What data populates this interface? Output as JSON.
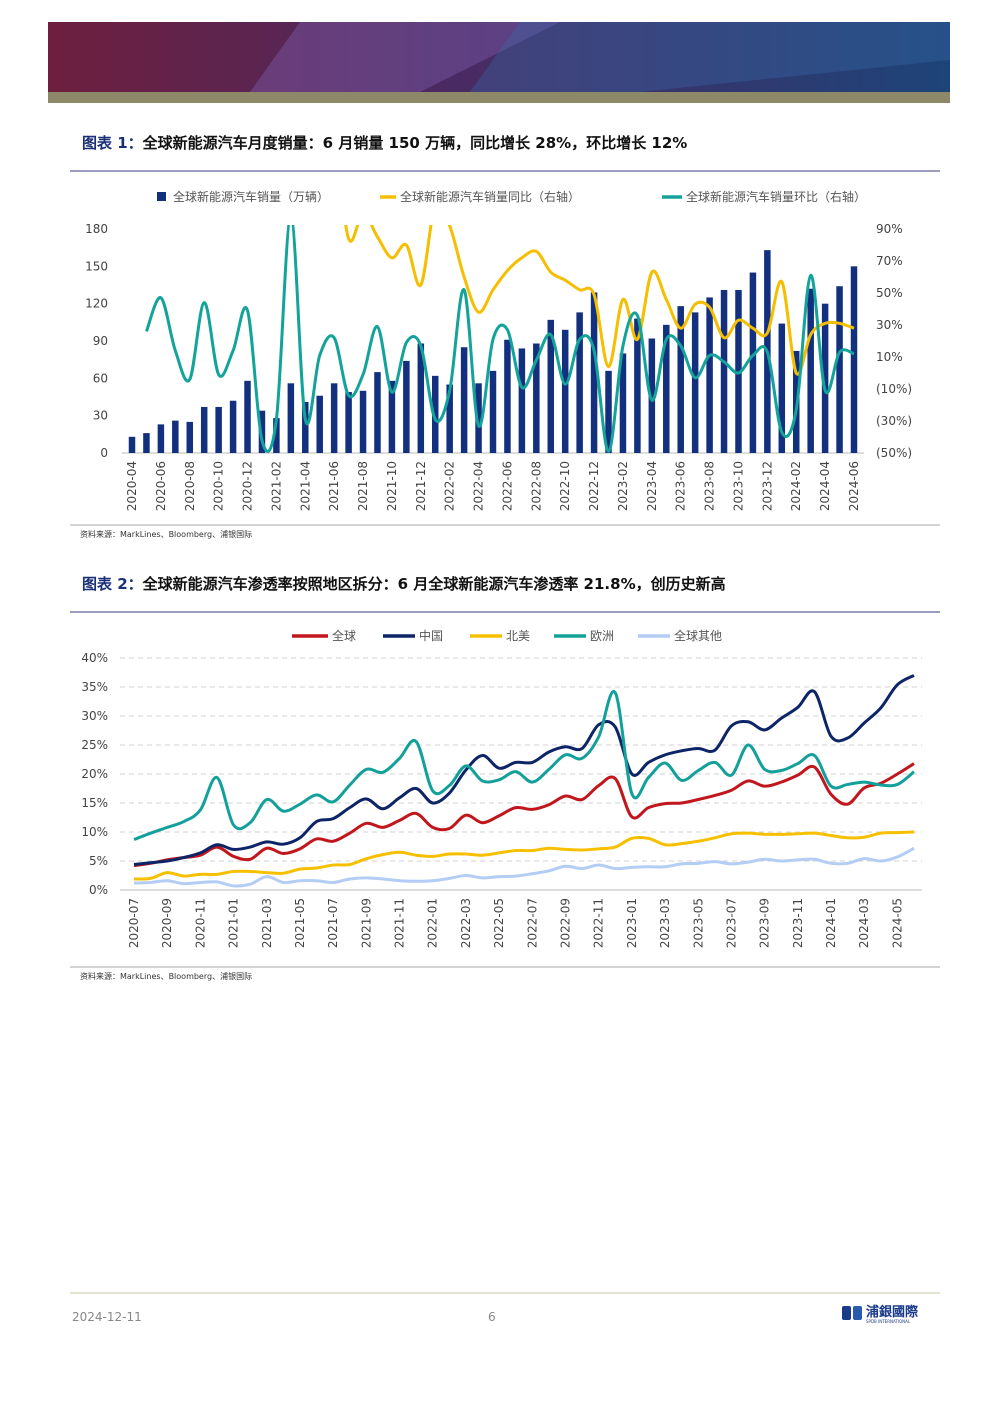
{
  "chart_data": [
    {
      "type": "combo",
      "figure_label": "图表 1：",
      "title": "全球新能源汽车月度销量：6 月销量 150 万辆，同比增长 28%，环比增长 12%",
      "source": "资料来源：MarkLines、Bloomberg、浦银国际",
      "legend": "top",
      "grid": false,
      "categories": [
        "2020-04",
        null,
        "2020-06",
        null,
        "2020-08",
        null,
        "2020-10",
        null,
        "2020-12",
        null,
        "2021-02",
        null,
        "2021-04",
        null,
        "2021-06",
        null,
        "2021-08",
        null,
        "2021-10",
        null,
        "2021-12",
        null,
        "2022-02",
        null,
        "2022-04",
        null,
        "2022-06",
        null,
        "2022-08",
        null,
        "2022-10",
        null,
        "2022-12",
        null,
        "2023-02",
        null,
        "2023-04",
        null,
        "2023-06",
        null,
        "2023-08",
        null,
        "2023-10",
        null,
        "2023-12",
        null,
        "2024-02",
        null,
        "2024-04",
        null,
        "2024-06"
      ],
      "ylim": [
        0,
        180
      ],
      "yticks": [
        0,
        30,
        60,
        90,
        120,
        150,
        180
      ],
      "y2lim": [
        -50,
        90
      ],
      "y2ticks": [
        {
          "value": -50,
          "label": "(50%)"
        },
        {
          "value": -30,
          "label": "(30%)"
        },
        {
          "value": -10,
          "label": "(10%)"
        },
        {
          "value": 10,
          "label": "10%"
        },
        {
          "value": 30,
          "label": "30%"
        },
        {
          "value": 50,
          "label": "50%"
        },
        {
          "value": 70,
          "label": "70%"
        },
        {
          "value": 90,
          "label": "90%"
        }
      ],
      "series": [
        {
          "name": "全球新能源汽车销量（万辆）",
          "type": "bar",
          "color": "#13307f",
          "values": [
            13,
            16,
            23,
            26,
            25,
            37,
            37,
            42,
            58,
            34,
            28,
            56,
            41,
            46,
            56,
            49,
            50,
            65,
            58,
            74,
            88,
            62,
            55,
            85,
            56,
            66,
            91,
            84,
            88,
            107,
            99,
            113,
            129,
            66,
            80,
            108,
            92,
            103,
            118,
            113,
            125,
            131,
            131,
            145,
            163,
            104,
            82,
            132,
            120,
            134,
            150
          ]
        },
        {
          "name": "全球新能源汽车销量同比（右轴）",
          "type": "line",
          "axis": "y2",
          "color": "#f5be00",
          "values": [
            null,
            null,
            null,
            null,
            null,
            null,
            null,
            null,
            null,
            null,
            null,
            null,
            null,
            null,
            150,
            84,
            100,
            85,
            72,
            80,
            55,
            105,
            92,
            60,
            38,
            52,
            64,
            72,
            76,
            63,
            58,
            52,
            49,
            4,
            46,
            21,
            63,
            46,
            28,
            43,
            41,
            22,
            33,
            28,
            25,
            57,
            0,
            24,
            31,
            31,
            28
          ]
        },
        {
          "name": "全球新能源汽车销量环比（右轴）",
          "type": "line",
          "axis": "y2",
          "color": "#14a39a",
          "values": [
            null,
            26,
            47,
            14,
            -4,
            44,
            -1,
            14,
            39,
            -42,
            -29,
            98,
            -29,
            11,
            22,
            -14,
            -1,
            29,
            -12,
            19,
            17,
            -29,
            -11,
            52,
            -33,
            21,
            27,
            -9,
            8,
            24,
            -7,
            21,
            14,
            -49,
            17,
            36,
            -17,
            21,
            17,
            -3,
            11,
            7,
            0,
            11,
            13,
            -37,
            -23,
            61,
            -11,
            13,
            12
          ]
        }
      ]
    },
    {
      "type": "line",
      "figure_label": "图表 2：",
      "title": "全球新能源汽车渗透率按照地区拆分：6 月全球新能源汽车渗透率 21.8%，创历史新高",
      "source": "资料来源：MarkLines、Bloomberg、浦银国际",
      "legend": "top",
      "grid": true,
      "categories": [
        "2020-07",
        null,
        "2020-09",
        null,
        "2020-11",
        null,
        "2021-01",
        null,
        "2021-03",
        null,
        "2021-05",
        null,
        "2021-07",
        null,
        "2021-09",
        null,
        "2021-11",
        null,
        "2022-01",
        null,
        "2022-03",
        null,
        "2022-05",
        null,
        "2022-07",
        null,
        "2022-09",
        null,
        "2022-11",
        null,
        "2023-01",
        null,
        "2023-03",
        null,
        "2023-05",
        null,
        "2023-07",
        null,
        "2023-09",
        null,
        "2023-11",
        null,
        "2024-01",
        null,
        "2024-03",
        null,
        "2024-05",
        null
      ],
      "ylim": [
        0,
        40
      ],
      "yticks": [
        {
          "value": 0,
          "label": "0%"
        },
        {
          "value": 5,
          "label": "5%"
        },
        {
          "value": 10,
          "label": "10%"
        },
        {
          "value": 15,
          "label": "15%"
        },
        {
          "value": 20,
          "label": "20%"
        },
        {
          "value": 25,
          "label": "25%"
        },
        {
          "value": 30,
          "label": "30%"
        },
        {
          "value": 35,
          "label": "35%"
        },
        {
          "value": 40,
          "label": "40%"
        }
      ],
      "series": [
        {
          "name": "全球",
          "color": "#c0161c",
          "values": [
            4.2,
            4.6,
            5.2,
            5.6,
            6.0,
            7.4,
            5.8,
            5.3,
            7.2,
            6.3,
            7.1,
            8.8,
            8.4,
            9.8,
            11.5,
            10.8,
            12.0,
            13.2,
            10.8,
            10.6,
            12.9,
            11.6,
            12.8,
            14.2,
            13.9,
            14.7,
            16.2,
            15.6,
            18.0,
            19.2,
            12.6,
            14.2,
            14.9,
            15.0,
            15.6,
            16.3,
            17.2,
            18.8,
            17.9,
            18.6,
            19.8,
            21.2,
            16.5,
            14.8,
            17.6,
            18.4,
            20.0,
            21.8
          ]
        },
        {
          "name": "中国",
          "color": "#0d2566",
          "values": [
            4.4,
            4.7,
            5.0,
            5.6,
            6.4,
            7.8,
            7.0,
            7.4,
            8.3,
            7.9,
            9.0,
            11.8,
            12.3,
            14.2,
            15.7,
            14.0,
            15.9,
            17.5,
            15.0,
            16.7,
            20.7,
            23.2,
            21.0,
            22.0,
            22.0,
            23.8,
            24.7,
            24.4,
            28.5,
            28.1,
            20.0,
            22.0,
            23.3,
            24.0,
            24.4,
            24.1,
            28.3,
            29.0,
            27.6,
            29.6,
            31.5,
            34.2,
            26.5,
            26.2,
            28.8,
            31.4,
            35.4,
            37.0
          ]
        },
        {
          "name": "北美",
          "color": "#f6c000",
          "values": [
            1.9,
            2.0,
            3.0,
            2.4,
            2.7,
            2.7,
            3.2,
            3.2,
            3.0,
            2.9,
            3.6,
            3.8,
            4.3,
            4.4,
            5.4,
            6.1,
            6.5,
            6.0,
            5.8,
            6.2,
            6.2,
            6.0,
            6.4,
            6.8,
            6.8,
            7.2,
            7.0,
            6.9,
            7.1,
            7.4,
            8.9,
            8.9,
            7.8,
            8.0,
            8.4,
            9.0,
            9.7,
            9.8,
            9.6,
            9.6,
            9.7,
            9.8,
            9.4,
            9.0,
            9.1,
            9.8,
            9.9,
            10.0
          ]
        },
        {
          "name": "欧洲",
          "color": "#14a09a",
          "values": [
            8.7,
            9.8,
            10.8,
            11.8,
            13.8,
            19.4,
            11.2,
            11.6,
            15.6,
            13.6,
            14.8,
            16.4,
            15.2,
            18.1,
            20.8,
            20.3,
            22.7,
            25.6,
            17.1,
            18.0,
            21.4,
            18.8,
            19.0,
            20.4,
            18.6,
            20.8,
            23.3,
            22.7,
            26.4,
            34.0,
            16.6,
            19.4,
            21.9,
            18.9,
            20.6,
            22.0,
            19.8,
            25.0,
            20.8,
            20.6,
            21.8,
            23.2,
            17.9,
            18.2,
            18.6,
            18.1,
            18.2,
            20.4
          ]
        },
        {
          "name": "全球其他",
          "color": "#b4cdf5",
          "values": [
            1.2,
            1.3,
            1.6,
            1.1,
            1.3,
            1.4,
            0.7,
            1.0,
            2.3,
            1.3,
            1.6,
            1.6,
            1.3,
            1.9,
            2.1,
            1.9,
            1.6,
            1.5,
            1.6,
            2.0,
            2.5,
            2.1,
            2.3,
            2.4,
            2.8,
            3.3,
            4.1,
            3.7,
            4.3,
            3.7,
            3.9,
            4.0,
            4.0,
            4.5,
            4.6,
            4.9,
            4.5,
            4.8,
            5.3,
            5.0,
            5.2,
            5.3,
            4.6,
            4.6,
            5.4,
            5.0,
            5.7,
            7.2
          ]
        }
      ]
    }
  ],
  "footer": {
    "date": "2024-12-11",
    "page": "6",
    "logo": "浦銀國際",
    "logo_sub": "SPDB INTERNATIONAL"
  }
}
